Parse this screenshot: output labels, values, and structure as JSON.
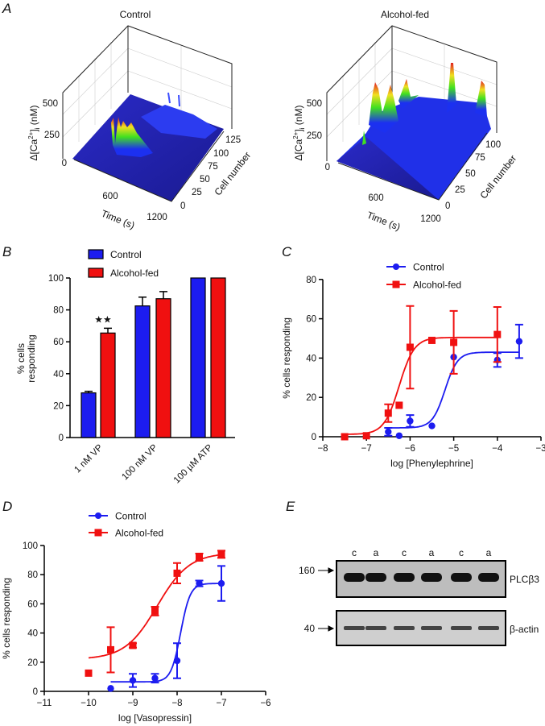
{
  "panel_labels": {
    "a": "A",
    "b": "B",
    "c": "C",
    "d": "D",
    "e": "E"
  },
  "chart_data": [
    {
      "id": "A-control",
      "type": "surface3d",
      "title": "Control",
      "zlabel": {
        "pre": "Δ[Ca",
        "sup": "2+",
        "mid": "]",
        "sub": "i",
        "post": " (nM)"
      },
      "xlabel": "Time (s)",
      "ylabel": "Cell number",
      "zticks": [
        "500",
        "250",
        "0"
      ],
      "xticks": [
        "600",
        "1200"
      ],
      "yticks": [
        "0",
        "25",
        "50",
        "75",
        "100",
        "125"
      ],
      "zlim": [
        0,
        500
      ],
      "xlim": [
        0,
        1200
      ],
      "ylim": [
        0,
        125
      ]
    },
    {
      "id": "A-alcohol",
      "type": "surface3d",
      "title": "Alcohol-fed",
      "zlabel": {
        "pre": "Δ[Ca",
        "sup": "2+",
        "mid": "]",
        "sub": "i",
        "post": " (nM)"
      },
      "xlabel": "Time (s)",
      "ylabel": "Cell number",
      "zticks": [
        "500",
        "250",
        "0"
      ],
      "xticks": [
        "600",
        "1200"
      ],
      "yticks": [
        "0",
        "25",
        "50",
        "75",
        "100"
      ],
      "zlim": [
        0,
        500
      ],
      "xlim": [
        0,
        1200
      ],
      "ylim": [
        0,
        100
      ]
    },
    {
      "id": "B",
      "type": "bar",
      "categories": [
        "1 nM VP",
        "100 nM VP",
        "100 µM ATP"
      ],
      "series": [
        {
          "name": "Control",
          "color": "#1c1cf0",
          "values": [
            28,
            82.5,
            100
          ],
          "errors": [
            1,
            5.5,
            0
          ]
        },
        {
          "name": "Alcohol-fed",
          "color": "#f01010",
          "values": [
            65.5,
            87,
            100
          ],
          "errors": [
            3,
            4.5,
            0
          ]
        }
      ],
      "significance": {
        "category": 0,
        "series": 1,
        "mark": "★★"
      },
      "ylabel_lines": [
        "% cells",
        "responding"
      ],
      "ylim": [
        0,
        100
      ],
      "yticks": [
        0,
        20,
        40,
        60,
        80,
        100
      ]
    },
    {
      "id": "C",
      "type": "line",
      "xlabel": "log [Phenylephrine]",
      "ylabel": "% cells responding",
      "xlim": [
        -8,
        -3
      ],
      "ylim": [
        0,
        80
      ],
      "xticks": [
        -8,
        -7,
        -6,
        -5,
        -4,
        -3
      ],
      "yticks": [
        0,
        20,
        40,
        60,
        80
      ],
      "legend": "top-center",
      "series": [
        {
          "name": "Control",
          "color": "#1c1cf0",
          "marker": "circle",
          "x": [
            -6.5,
            -6.25,
            -6,
            -5.5,
            -5,
            -4,
            -3.5
          ],
          "y": [
            2.5,
            0.5,
            8,
            5.5,
            40.5,
            39,
            48.5
          ],
          "err": [
            2,
            0,
            3,
            0,
            0,
            3.5,
            8.5
          ],
          "fit": {
            "bottom": 4.5,
            "top": 43,
            "logEC50": -5.2,
            "hill": 3,
            "range": [
              -6.5,
              -3.5
            ]
          }
        },
        {
          "name": "Alcohol-fed",
          "color": "#f01010",
          "marker": "square",
          "x": [
            -7.5,
            -7,
            -6.5,
            -6.25,
            -6,
            -5.5,
            -5,
            -4
          ],
          "y": [
            0,
            0.5,
            12,
            16,
            45.5,
            49,
            48,
            52
          ],
          "err": [
            0,
            0,
            4.5,
            0,
            21,
            0,
            16,
            14
          ],
          "fit": {
            "bottom": 1.2,
            "top": 50.5,
            "logEC50": -6.25,
            "hill": 2.5,
            "range": [
              -7.5,
              -4
            ]
          }
        }
      ]
    },
    {
      "id": "D",
      "type": "line",
      "xlabel": "log [Vasopressin]",
      "ylabel": "% cells responding",
      "xlim": [
        -11,
        -6
      ],
      "ylim": [
        0,
        100
      ],
      "xticks": [
        -11,
        -10,
        -9,
        -8,
        -7,
        -6
      ],
      "yticks": [
        0,
        20,
        40,
        60,
        80,
        100
      ],
      "legend": "top-center",
      "series": [
        {
          "name": "Control",
          "color": "#1c1cf0",
          "marker": "circle",
          "x": [
            -9.5,
            -9,
            -8.5,
            -8,
            -7.5,
            -7
          ],
          "y": [
            2,
            7.5,
            9,
            21,
            74,
            74
          ],
          "err": [
            0,
            4.5,
            3,
            12,
            2,
            12
          ],
          "fit": {
            "bottom": 6.5,
            "top": 74,
            "logEC50": -7.92,
            "hill": 4,
            "range": [
              -9.5,
              -7
            ]
          }
        },
        {
          "name": "Alcohol-fed",
          "color": "#f01010",
          "marker": "square",
          "x": [
            -10,
            -9.5,
            -9,
            -8.5,
            -8,
            -7.5,
            -7
          ],
          "y": [
            12.5,
            28.5,
            31.5,
            55,
            81,
            92,
            94
          ],
          "err": [
            0,
            15.5,
            1.5,
            3,
            7,
            2.5,
            2.5
          ],
          "fit": {
            "bottom": 22,
            "top": 95,
            "logEC50": -8.45,
            "hill": 1.2,
            "range": [
              -10,
              -7
            ]
          }
        }
      ]
    }
  ],
  "blot": {
    "lanes": [
      "c",
      "a",
      "c",
      "a",
      "c",
      "a"
    ],
    "rows": [
      {
        "marker": "160",
        "protein": "PLCβ3"
      },
      {
        "marker": "40",
        "protein": "β-actin"
      }
    ]
  }
}
